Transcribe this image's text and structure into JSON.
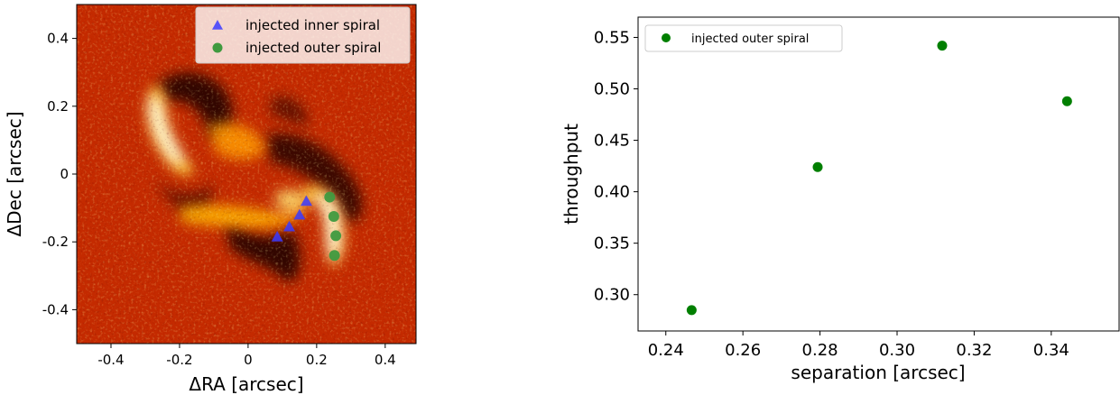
{
  "chart_data": [
    {
      "type": "heatmap",
      "xlabel": "ΔRA [arcsec]",
      "ylabel": "ΔDec [arcsec]",
      "xlim": [
        -0.5,
        0.49
      ],
      "ylim": [
        -0.5,
        0.5
      ],
      "xticks": [
        -0.4,
        -0.2,
        0,
        0.2,
        0.4
      ],
      "xtick_labels": [
        "-0.4",
        "-0.2",
        "0",
        "0.2",
        "0.4"
      ],
      "yticks": [
        -0.4,
        -0.2,
        0,
        0.2,
        0.4
      ],
      "ytick_labels": [
        "-0.4",
        "-0.2",
        "0",
        "0.2",
        "0.4"
      ],
      "legend_position": "top-right",
      "series": [
        {
          "name": "injected inner spiral",
          "marker": "triangle",
          "color": "#3b3bff",
          "x": [
            0.085,
            0.12,
            0.15,
            0.17
          ],
          "y": [
            -0.185,
            -0.155,
            -0.12,
            -0.08
          ]
        },
        {
          "name": "injected outer spiral",
          "marker": "circle",
          "color": "#3f9a3f",
          "x": [
            0.238,
            0.25,
            0.256,
            0.252
          ],
          "y": [
            -0.068,
            -0.125,
            -0.182,
            -0.24
          ]
        }
      ]
    },
    {
      "type": "scatter",
      "xlabel": "separation [arcsec]",
      "ylabel": "throughput",
      "xlim": [
        0.2328,
        0.3576
      ],
      "ylim": [
        0.2647,
        0.5697
      ],
      "xticks": [
        0.24,
        0.26,
        0.28,
        0.3,
        0.32,
        0.34
      ],
      "xtick_labels": [
        "0.24",
        "0.26",
        "0.28",
        "0.30",
        "0.32",
        "0.34"
      ],
      "yticks": [
        0.3,
        0.35,
        0.4,
        0.45,
        0.5,
        0.55
      ],
      "ytick_labels": [
        "0.30",
        "0.35",
        "0.40",
        "0.45",
        "0.50",
        "0.55"
      ],
      "legend_position": "top-left",
      "series": [
        {
          "name": "injected outer spiral",
          "color": "#007f00",
          "x": [
            0.2467,
            0.2794,
            0.3117,
            0.3441
          ],
          "y": [
            0.285,
            0.424,
            0.542,
            0.488
          ]
        }
      ]
    }
  ]
}
